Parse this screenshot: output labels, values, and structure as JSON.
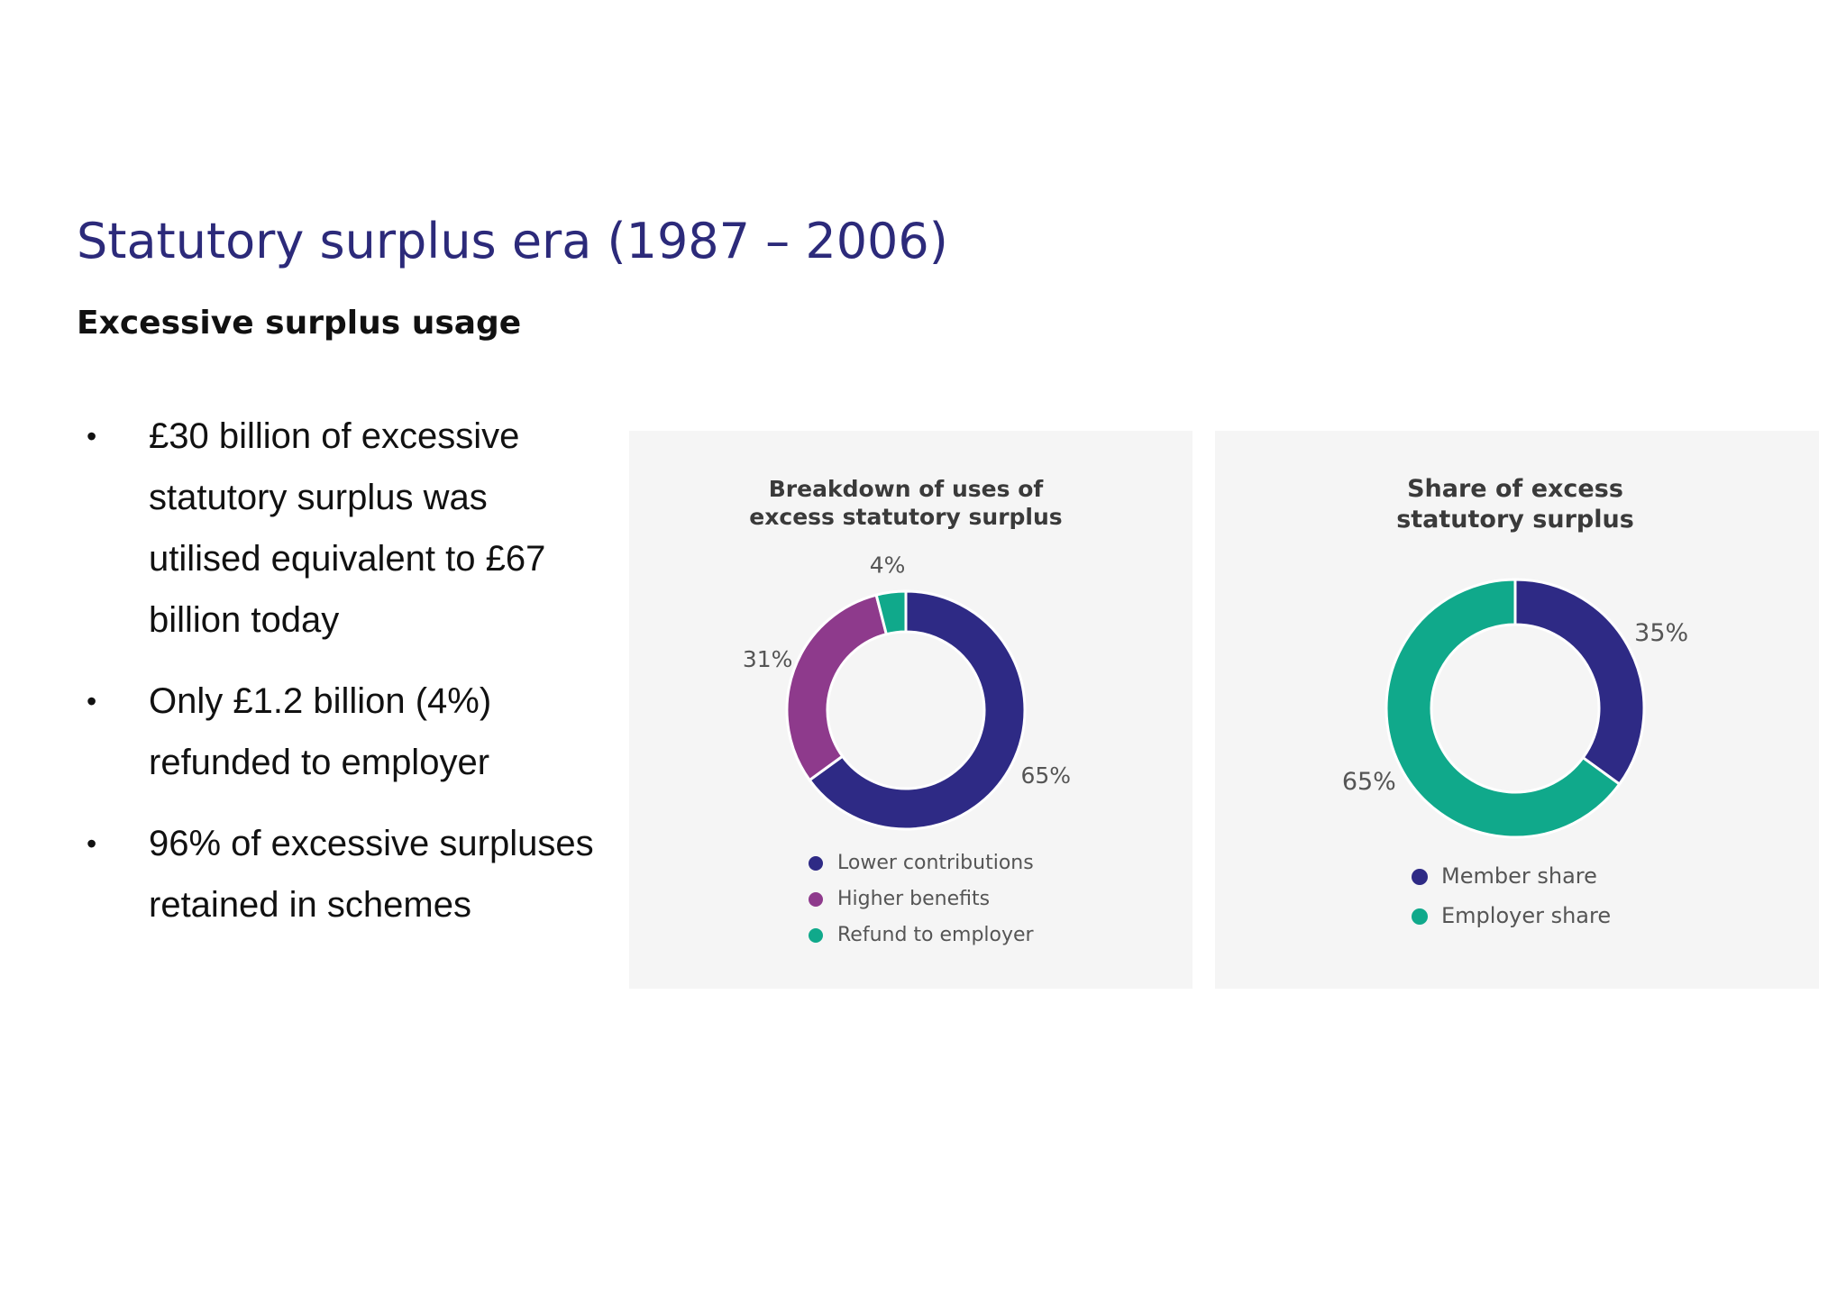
{
  "page": {
    "title": "Statutory surplus era (1987 – 2006)",
    "subtitle": "Excessive surplus usage"
  },
  "bullets": [
    {
      "marker": "•",
      "text": "£30 billion of excessive statutory surplus was utilised equivalent to £67 billion today"
    },
    {
      "marker": "•",
      "text": "Only £1.2 billion (4%) refunded to employer"
    },
    {
      "marker": "•",
      "text": "96% of excessive surpluses retained in schemes"
    }
  ],
  "chart_data": [
    {
      "type": "pie",
      "variant": "donut",
      "title_lines": [
        "Breakdown of uses of",
        "excess statutory surplus"
      ],
      "categories": [
        "Lower contributions",
        "Higher benefits",
        "Refund to employer"
      ],
      "values": [
        65,
        31,
        4
      ],
      "labels": [
        "65%",
        "31%",
        "4%"
      ],
      "colors": [
        "#2e2a85",
        "#8e3a8c",
        "#10a98b"
      ],
      "legend_position": "bottom"
    },
    {
      "type": "pie",
      "variant": "donut",
      "title_lines": [
        "Share of excess",
        "statutory surplus"
      ],
      "categories": [
        "Member share",
        "Employer share"
      ],
      "values": [
        35,
        65
      ],
      "labels": [
        "35%",
        "65%"
      ],
      "colors": [
        "#2e2a85",
        "#10a98b"
      ],
      "legend_position": "bottom"
    }
  ]
}
